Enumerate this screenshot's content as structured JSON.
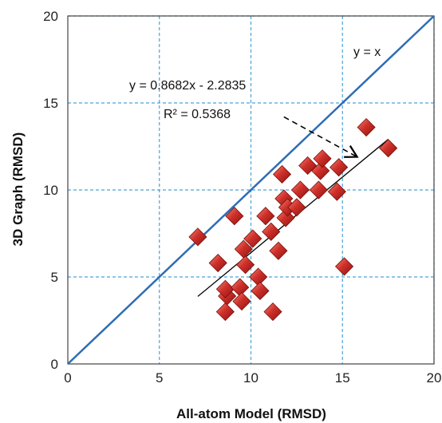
{
  "chart_data": {
    "type": "scatter",
    "title": "",
    "xlabel": "All-atom Model (RMSD)",
    "ylabel": "3D Graph (RMSD)",
    "xlim": [
      0,
      20
    ],
    "ylim": [
      0,
      20
    ],
    "x_ticks": [
      "0",
      "5",
      "10",
      "15",
      "20"
    ],
    "y_ticks": [
      "0",
      "5",
      "10",
      "15",
      "20"
    ],
    "grid": true,
    "grid_style": "dashed",
    "colors": {
      "points": "#c0221e",
      "identity_line": "#2f6db5",
      "grid": "#4aa3d8",
      "trendline": "#000000"
    },
    "series": [
      {
        "marker": "diamond",
        "x": [
          7.1,
          8.2,
          8.6,
          8.7,
          8.6,
          9.1,
          9.4,
          9.5,
          9.6,
          9.7,
          10.1,
          10.4,
          10.5,
          10.8,
          11.1,
          11.2,
          11.5,
          11.7,
          11.8,
          11.9,
          12.0,
          12.5,
          12.7,
          13.1,
          13.7,
          13.8,
          13.9,
          14.7,
          14.8,
          15.1,
          16.3,
          17.5
        ],
        "y": [
          7.3,
          5.8,
          3.0,
          3.9,
          4.3,
          8.5,
          4.4,
          3.6,
          6.6,
          5.7,
          7.2,
          5.0,
          4.2,
          8.5,
          7.6,
          3.0,
          6.5,
          10.9,
          9.5,
          8.4,
          9.0,
          9.0,
          10.0,
          11.4,
          10.0,
          11.1,
          11.8,
          9.9,
          11.3,
          5.6,
          13.6,
          12.4
        ]
      }
    ],
    "identity_line": {
      "label": "y = x",
      "x": [
        0,
        20
      ],
      "y": [
        0,
        20
      ]
    },
    "trendline": {
      "equation": "y = 0.8682x - 2.2835",
      "r_squared": "R² = 0.5368",
      "slope": 0.8682,
      "intercept": -2.2835,
      "x_range": [
        7.1,
        17.5
      ]
    },
    "annotation_arrow": {
      "from": [
        11.8,
        14.2
      ],
      "to": [
        15.8,
        11.9
      ]
    }
  }
}
